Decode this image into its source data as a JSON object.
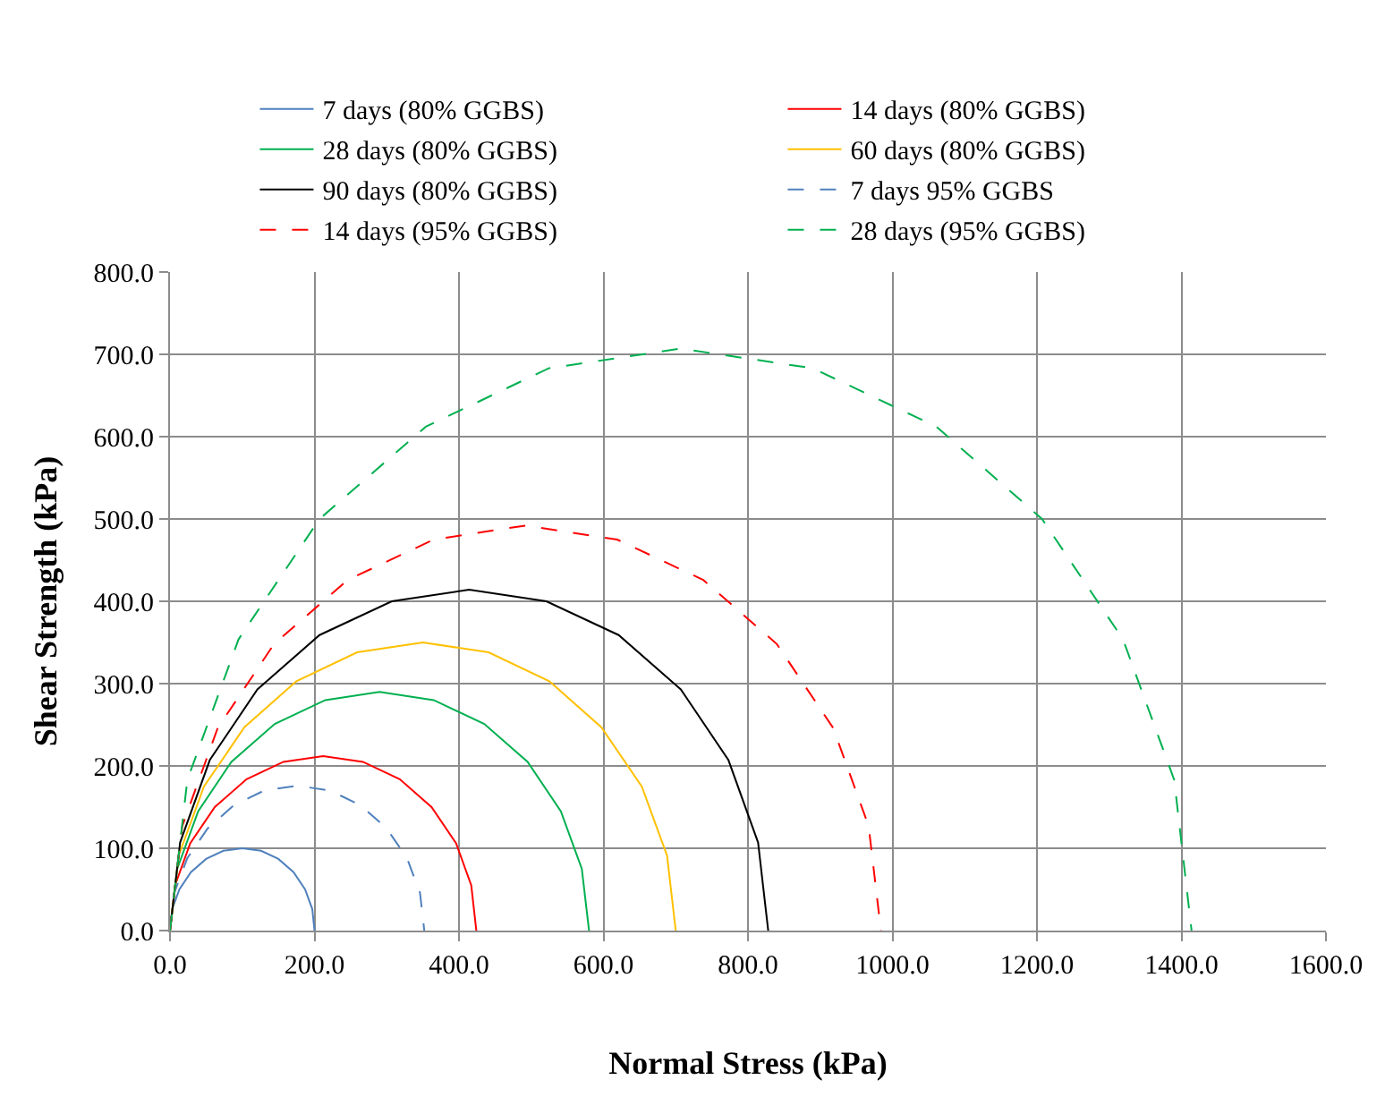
{
  "chart_data": {
    "type": "line",
    "xlabel": "Normal Stress (kPa)",
    "ylabel": "Shear Strength (kPa)",
    "xlim": [
      0,
      1600
    ],
    "ylim": [
      0,
      800
    ],
    "xticks": [
      {
        "value": 0,
        "label": "0.0"
      },
      {
        "value": 200,
        "label": "200.0"
      },
      {
        "value": 400,
        "label": "400.0"
      },
      {
        "value": 600,
        "label": "600.0"
      },
      {
        "value": 800,
        "label": "800.0"
      },
      {
        "value": 1000,
        "label": "1000.0"
      },
      {
        "value": 1200,
        "label": "1200.0"
      },
      {
        "value": 1400,
        "label": "1400.0"
      },
      {
        "value": 1600,
        "label": "1600.0"
      }
    ],
    "yticks": [
      {
        "value": 0,
        "label": "0.0"
      },
      {
        "value": 100,
        "label": "100.0"
      },
      {
        "value": 200,
        "label": "200.0"
      },
      {
        "value": 300,
        "label": "300.0"
      },
      {
        "value": 400,
        "label": "400.0"
      },
      {
        "value": 500,
        "label": "500.0"
      },
      {
        "value": 600,
        "label": "600.0"
      },
      {
        "value": 700,
        "label": "700.0"
      },
      {
        "value": 800,
        "label": "800.0"
      }
    ],
    "grid": true,
    "legend": "top",
    "marker": "none",
    "series": [
      {
        "name": "7 days (80% GGBS)",
        "color": "#4f81bd",
        "line_style": "solid",
        "x": [
          0,
          3,
          13,
          29,
          50,
          74,
          100,
          126,
          150,
          171,
          187,
          197,
          200
        ],
        "values": [
          0,
          26,
          50,
          71,
          87,
          97,
          100,
          97,
          87,
          71,
          50,
          26,
          0
        ]
      },
      {
        "name": "14 days (80% GGBS)",
        "color": "#ff0000",
        "line_style": "solid",
        "x": [
          0,
          7,
          28,
          62,
          106,
          157,
          212,
          267,
          318,
          362,
          396,
          417,
          424
        ],
        "values": [
          0,
          55,
          106,
          150,
          184,
          205,
          212,
          205,
          184,
          150,
          106,
          55,
          0
        ]
      },
      {
        "name": "28 days (80% GGBS)",
        "color": "#00b050",
        "line_style": "solid",
        "x": [
          0,
          10,
          39,
          85,
          145,
          215,
          290,
          365,
          435,
          495,
          541,
          570,
          580
        ],
        "values": [
          0,
          75,
          145,
          205,
          251,
          280,
          290,
          280,
          251,
          205,
          145,
          75,
          0
        ]
      },
      {
        "name": "60 days (80% GGBS)",
        "color": "#ffc000",
        "line_style": "solid",
        "x": [
          0,
          12,
          47,
          103,
          175,
          259,
          350,
          441,
          525,
          597,
          653,
          688,
          700
        ],
        "values": [
          0,
          91,
          175,
          247,
          303,
          338,
          350,
          338,
          303,
          247,
          175,
          91,
          0
        ]
      },
      {
        "name": "90 days (80% GGBS)",
        "color": "#000000",
        "line_style": "solid",
        "x": [
          0,
          14,
          55,
          121,
          207,
          307,
          414,
          521,
          621,
          707,
          773,
          814,
          828
        ],
        "values": [
          0,
          107,
          207,
          293,
          359,
          400,
          414,
          400,
          359,
          293,
          207,
          107,
          0
        ]
      },
      {
        "name": "7 days 95% GGBS",
        "color": "#4f81bd",
        "line_style": "dashed",
        "x": [
          0,
          6,
          24,
          52,
          88,
          130,
          176,
          222,
          264,
          300,
          328,
          346,
          352
        ],
        "values": [
          0,
          46,
          88,
          124,
          152,
          170,
          176,
          170,
          152,
          124,
          88,
          46,
          0
        ]
      },
      {
        "name": "14 days (95% GGBS)",
        "color": "#ff0000",
        "line_style": "dashed",
        "x": [
          0,
          17,
          66,
          144,
          246,
          365,
          492,
          619,
          738,
          840,
          918,
          967,
          984
        ],
        "values": [
          0,
          127,
          246,
          348,
          426,
          475,
          492,
          475,
          426,
          348,
          246,
          127,
          0
        ]
      },
      {
        "name": "28 days (95% GGBS)",
        "color": "#00b050",
        "line_style": "dashed",
        "x": [
          0,
          24,
          95,
          207,
          354,
          524,
          707,
          890,
          1061,
          1207,
          1319,
          1390,
          1414
        ],
        "values": [
          0,
          183,
          354,
          500,
          612,
          683,
          707,
          683,
          612,
          500,
          354,
          183,
          0
        ]
      }
    ]
  }
}
